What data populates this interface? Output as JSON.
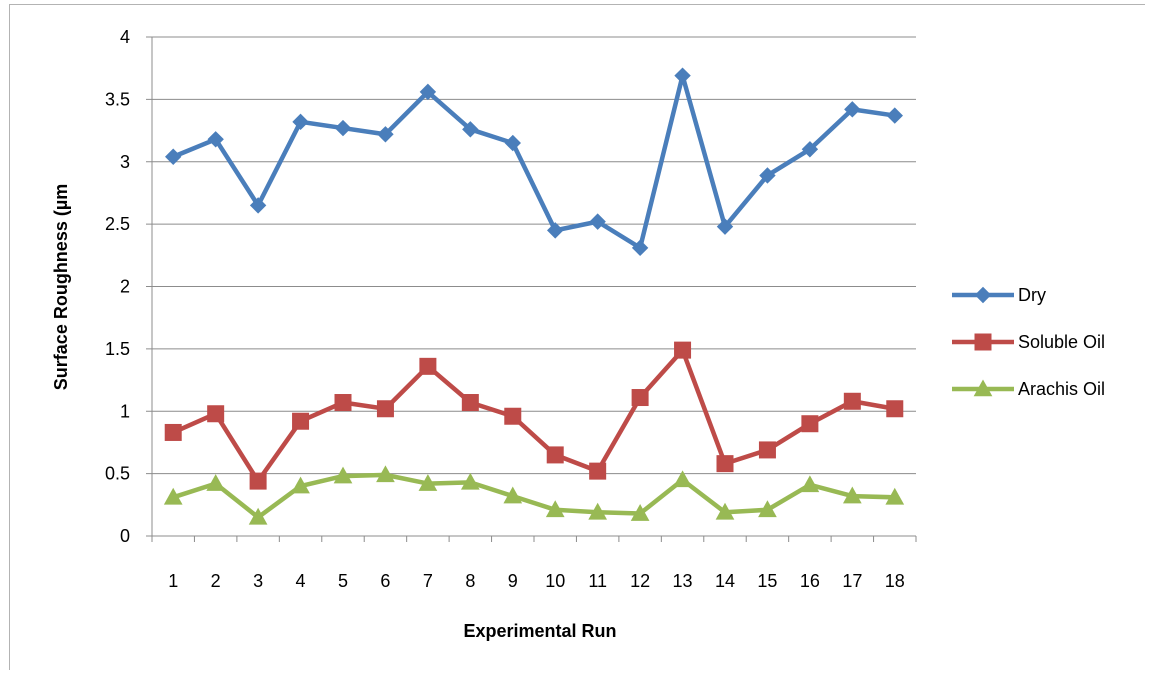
{
  "chart_data": {
    "type": "line",
    "title": "",
    "xlabel": "Experimental Run",
    "ylabel": "Surface Roughness (µm",
    "categories": [
      "1",
      "2",
      "3",
      "4",
      "5",
      "6",
      "7",
      "8",
      "9",
      "10",
      "11",
      "12",
      "13",
      "14",
      "15",
      "16",
      "17",
      "18"
    ],
    "ylim": [
      0,
      4
    ],
    "yticks": [
      "0",
      "0.5",
      "1",
      "1.5",
      "2",
      "2.5",
      "3",
      "3.5",
      "4"
    ],
    "grid": true,
    "legend_position": "right",
    "series": [
      {
        "name": "Dry",
        "color": "#4a7ebb",
        "marker": "diamond",
        "values": [
          3.04,
          3.18,
          2.65,
          3.32,
          3.27,
          3.22,
          3.56,
          3.26,
          3.15,
          2.45,
          2.52,
          2.31,
          3.69,
          2.48,
          2.89,
          3.1,
          3.42,
          3.37
        ]
      },
      {
        "name": "Soluble Oil",
        "color": "#be4b48",
        "marker": "square",
        "values": [
          0.83,
          0.98,
          0.44,
          0.92,
          1.07,
          1.02,
          1.36,
          1.07,
          0.96,
          0.65,
          0.52,
          1.11,
          1.49,
          0.58,
          0.69,
          0.9,
          1.08,
          1.02
        ]
      },
      {
        "name": "Arachis Oil",
        "color": "#98b954",
        "marker": "triangle",
        "values": [
          0.31,
          0.42,
          0.15,
          0.4,
          0.48,
          0.49,
          0.42,
          0.43,
          0.32,
          0.21,
          0.19,
          0.18,
          0.45,
          0.19,
          0.21,
          0.41,
          0.32,
          0.31
        ]
      }
    ]
  }
}
